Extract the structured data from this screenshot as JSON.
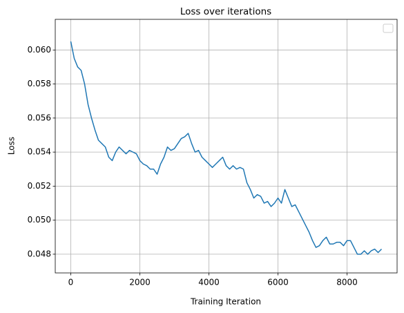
{
  "chart_data": {
    "type": "line",
    "title": "Loss over iterations",
    "x_label": "Training Iteration",
    "y_label": "Loss",
    "grid": true,
    "xlim": [
      -450,
      9450
    ],
    "xticks": [
      0,
      2000,
      4000,
      6000,
      8000
    ],
    "ylim": [
      0.0469,
      0.0618
    ],
    "yticks": [
      0.048,
      {
        "value": 0.05,
        "label": "0.050"
      },
      0.052,
      0.054,
      0.056,
      0.058,
      {
        "value": 0.06,
        "label": "0.060"
      }
    ],
    "x": [
      0,
      100,
      200,
      300,
      400,
      500,
      600,
      700,
      800,
      900,
      1000,
      1100,
      1200,
      1300,
      1400,
      1500,
      1600,
      1700,
      1800,
      1900,
      2000,
      2100,
      2200,
      2300,
      2400,
      2500,
      2600,
      2700,
      2800,
      2900,
      3000,
      3100,
      3200,
      3300,
      3400,
      3500,
      3600,
      3700,
      3800,
      3900,
      4000,
      4100,
      4200,
      4300,
      4400,
      4500,
      4600,
      4700,
      4800,
      4900,
      5000,
      5100,
      5200,
      5300,
      5400,
      5500,
      5600,
      5700,
      5800,
      5900,
      6000,
      6100,
      6200,
      6300,
      6400,
      6500,
      6600,
      6700,
      6800,
      6900,
      7000,
      7100,
      7200,
      7300,
      7400,
      7500,
      7600,
      7700,
      7800,
      7900,
      8000,
      8100,
      8200,
      8300,
      8400,
      8500,
      8600,
      8700,
      8800,
      8900,
      9000
    ],
    "series": [
      {
        "color": "#1f77b4",
        "values": [
          0.0605,
          0.0595,
          0.059,
          0.0588,
          0.058,
          0.0568,
          0.056,
          0.0553,
          0.0547,
          0.0545,
          0.0543,
          0.0537,
          0.0535,
          0.054,
          0.0543,
          0.0541,
          0.0539,
          0.0541,
          0.054,
          0.0539,
          0.0535,
          0.0533,
          0.0532,
          0.053,
          0.053,
          0.0527,
          0.0533,
          0.0537,
          0.0543,
          0.0541,
          0.0542,
          0.0545,
          0.0548,
          0.0549,
          0.0551,
          0.0545,
          0.054,
          0.0541,
          0.0537,
          0.0535,
          0.0533,
          0.0531,
          0.0533,
          0.0535,
          0.0537,
          0.0532,
          0.053,
          0.0532,
          0.053,
          0.0531,
          0.053,
          0.0522,
          0.0518,
          0.0513,
          0.0515,
          0.0514,
          0.051,
          0.0511,
          0.0508,
          0.051,
          0.0513,
          0.051,
          0.0518,
          0.0513,
          0.0508,
          0.0509,
          0.0505,
          0.0501,
          0.0497,
          0.0493,
          0.0488,
          0.0484,
          0.0485,
          0.0488,
          0.049,
          0.0486,
          0.0486,
          0.0487,
          0.0487,
          0.0485,
          0.0488,
          0.0488,
          0.0484,
          0.048,
          0.048,
          0.0482,
          0.048,
          0.0482,
          0.0483,
          0.0481,
          0.0483
        ]
      }
    ]
  }
}
